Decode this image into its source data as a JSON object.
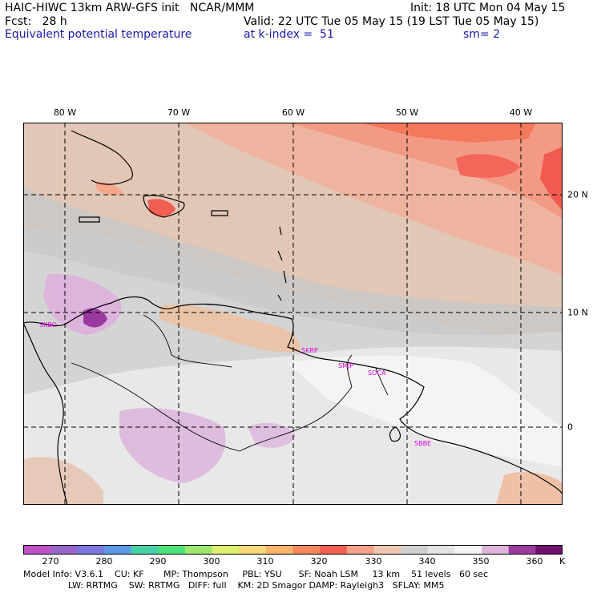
{
  "header": {
    "title": "HAIC-HIWC 13km ARW-GFS init   NCAR/MMM",
    "init": "Init: 18 UTC Mon 04 May 15",
    "fcst": "Fcst:   28 h",
    "valid": "Valid: 22 UTC Tue 05 May 15 (19 LST Tue 05 May 15)",
    "field": "Equivalent potential temperature",
    "level": "at k-index =  51",
    "smooth": "sm= 2"
  },
  "longitude_labels": [
    "80 W",
    "70 W",
    "60 W",
    "50 W",
    "40 W"
  ],
  "latitude_labels": [
    "20 N",
    "10 N",
    "0"
  ],
  "stations": [
    "SKBO",
    "SKRP",
    "SMJP",
    "SOCA",
    "SBBE"
  ],
  "colorbar": {
    "ticks": [
      "270",
      "280",
      "290",
      "300",
      "310",
      "320",
      "330",
      "340",
      "350",
      "360"
    ],
    "units": "K",
    "colors": [
      "#c050c8",
      "#9b66c8",
      "#7a78e0",
      "#5a9ae6",
      "#46d2a8",
      "#4ae37c",
      "#9be86a",
      "#dff070",
      "#f6d878",
      "#f7b46a",
      "#f4875a",
      "#f15f52",
      "#f5a08a",
      "#efc7b0",
      "#d0d0d0",
      "#e4e4e4",
      "#f4f4f4",
      "#dcb4dc",
      "#9a3aa0",
      "#6e1070"
    ]
  },
  "model_info": {
    "line1": "Model Info: V3.6.1    CU: KF       MP: Thompson     PBL: YSU      SF: Noah LSM     13 km    51 levels   60 sec",
    "line2": "                LW: RRTMG    SW: RRTMG   DIFF: full    KM: 2D Smagor DAMP: Rayleigh3   SFLAY: MM5"
  }
}
